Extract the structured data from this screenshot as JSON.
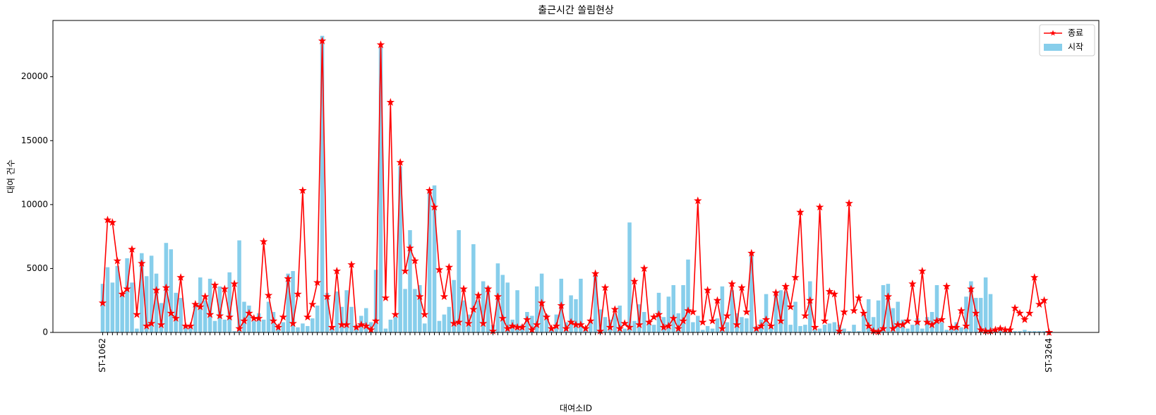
{
  "chart_data": {
    "type": "bar",
    "title": "출근시간 쏠림현상",
    "x_label": "대여소ID",
    "y_label": "대여 건수",
    "categories": [
      "ST-1062",
      null,
      null,
      null,
      null,
      null,
      null,
      null,
      null,
      null,
      null,
      null,
      null,
      null,
      null,
      null,
      null,
      null,
      null,
      null,
      null,
      null,
      null,
      null,
      null,
      null,
      null,
      null,
      null,
      null,
      null,
      null,
      null,
      null,
      null,
      null,
      null,
      null,
      null,
      null,
      null,
      null,
      null,
      null,
      null,
      null,
      null,
      null,
      null,
      null,
      null,
      null,
      null,
      null,
      null,
      null,
      null,
      null,
      null,
      null,
      null,
      null,
      null,
      null,
      null,
      null,
      null,
      null,
      null,
      null,
      null,
      null,
      null,
      null,
      null,
      null,
      null,
      null,
      null,
      null,
      null,
      null,
      null,
      null,
      null,
      null,
      null,
      null,
      null,
      null,
      null,
      null,
      null,
      null,
      null,
      null,
      null,
      null,
      null,
      null,
      null,
      null,
      null,
      null,
      null,
      null,
      null,
      null,
      null,
      null,
      null,
      null,
      null,
      null,
      null,
      null,
      null,
      null,
      null,
      null,
      null,
      null,
      null,
      null,
      null,
      null,
      null,
      null,
      null,
      null,
      null,
      null,
      null,
      null,
      null,
      null,
      null,
      null,
      null,
      null,
      null,
      null,
      null,
      null,
      null,
      null,
      null,
      null,
      null,
      null,
      null,
      null,
      null,
      null,
      null,
      null,
      null,
      null,
      null,
      null,
      null,
      null,
      null,
      null,
      null,
      null,
      null,
      null,
      null,
      null,
      null,
      null,
      null,
      null,
      null,
      null,
      null,
      null,
      null,
      null,
      null,
      null,
      null,
      null,
      null,
      null,
      null,
      null,
      null,
      null,
      null,
      null,
      null,
      null,
      "ST-3264"
    ],
    "series": [
      {
        "name": "시작",
        "type": "bar",
        "color": "#87ceeb",
        "values": [
          3800,
          5100,
          3900,
          5200,
          3100,
          5800,
          3900,
          300,
          6200,
          4400,
          6000,
          4600,
          2300,
          7000,
          6500,
          3100,
          2700,
          500,
          500,
          2300,
          4300,
          2500,
          4200,
          900,
          3600,
          1000,
          4700,
          100,
          7200,
          2400,
          2100,
          900,
          1500,
          1000,
          2400,
          1600,
          400,
          800,
          4600,
          4800,
          400,
          700,
          500,
          1100,
          2100,
          23200,
          3100,
          500,
          3200,
          2000,
          3300,
          2000,
          600,
          1300,
          1900,
          800,
          4900,
          22300,
          300,
          1000,
          1200,
          13000,
          3400,
          8000,
          3400,
          3700,
          700,
          11200,
          11500,
          900,
          1400,
          2000,
          4100,
          8000,
          2500,
          1400,
          6900,
          2500,
          4000,
          3600,
          600,
          5400,
          4500,
          3900,
          1000,
          3300,
          600,
          1600,
          1300,
          3600,
          4600,
          1400,
          400,
          1400,
          4200,
          800,
          2900,
          2600,
          4200,
          300,
          800,
          4500,
          1800,
          1200,
          1000,
          1500,
          2100,
          300,
          8600,
          900,
          2200,
          1600,
          900,
          600,
          3100,
          1200,
          2800,
          3700,
          1500,
          3700,
          5700,
          800,
          1300,
          200,
          500,
          300,
          1100,
          3600,
          800,
          3300,
          1500,
          1200,
          1100,
          6300,
          500,
          1000,
          3000,
          400,
          3100,
          3300,
          3200,
          600,
          2400,
          500,
          600,
          4000,
          200,
          300,
          600,
          700,
          800,
          600,
          300,
          100,
          600,
          100,
          1500,
          2600,
          1200,
          2500,
          3700,
          3800,
          1900,
          2400,
          1000,
          300,
          600,
          1100,
          300,
          1200,
          1600,
          3700,
          800,
          200,
          500,
          800,
          400,
          2800,
          4000,
          2700,
          2700,
          4300,
          3000,
          300,
          200,
          100,
          150,
          100,
          100,
          200,
          100,
          100,
          100,
          100,
          100
        ]
      },
      {
        "name": "종료",
        "type": "line",
        "color": "#ff0000",
        "values": [
          2300,
          8800,
          8600,
          5600,
          3000,
          3400,
          6500,
          1400,
          5400,
          500,
          700,
          3300,
          600,
          3500,
          1500,
          1100,
          4300,
          500,
          500,
          2200,
          2000,
          2800,
          1400,
          3700,
          1300,
          3400,
          1200,
          3800,
          300,
          900,
          1500,
          1100,
          1100,
          7100,
          2900,
          900,
          400,
          1200,
          4200,
          700,
          3000,
          11100,
          1200,
          2200,
          3900,
          22800,
          2800,
          400,
          4800,
          600,
          600,
          5300,
          400,
          600,
          500,
          200,
          900,
          22500,
          2700,
          18000,
          1400,
          13300,
          4800,
          6600,
          5600,
          2800,
          1400,
          11100,
          9800,
          4900,
          2800,
          5100,
          700,
          800,
          3400,
          700,
          1800,
          2900,
          700,
          3400,
          100,
          2800,
          1100,
          300,
          500,
          400,
          400,
          1000,
          200,
          600,
          2300,
          1200,
          300,
          500,
          2100,
          300,
          800,
          600,
          600,
          300,
          900,
          4600,
          100,
          3500,
          400,
          1800,
          300,
          700,
          400,
          4000,
          600,
          5000,
          800,
          1200,
          1400,
          400,
          500,
          1100,
          300,
          900,
          1700,
          1600,
          10300,
          800,
          3300,
          900,
          2500,
          300,
          1300,
          3800,
          600,
          3500,
          1600,
          6200,
          300,
          500,
          1000,
          500,
          3100,
          900,
          3600,
          2000,
          4300,
          9400,
          1300,
          2500,
          400,
          9800,
          900,
          3200,
          3000,
          100,
          1600,
          10100,
          1700,
          2700,
          1500,
          500,
          100,
          50,
          300,
          2800,
          300,
          600,
          600,
          900,
          3800,
          800,
          4800,
          800,
          600,
          900,
          1000,
          3600,
          400,
          400,
          1700,
          500,
          3400,
          1500,
          200,
          100,
          100,
          200,
          300,
          200,
          200,
          1900,
          1500,
          1000,
          1500,
          4300,
          2200,
          2500,
          0
        ]
      }
    ],
    "ylim": [
      0,
      24400
    ],
    "yticks": [
      0,
      5000,
      10000,
      15000,
      20000
    ],
    "grid": false,
    "legend": "upper right"
  }
}
